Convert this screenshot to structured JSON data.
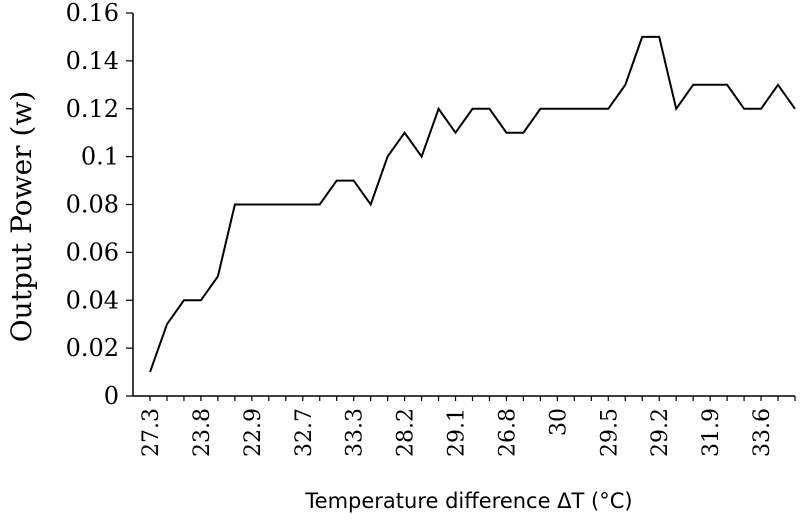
{
  "chart_data": {
    "type": "line",
    "title": "",
    "xlabel": "Temperature difference ΔT (°C)",
    "ylabel": "Output Power (w)",
    "ylim": [
      0,
      0.16
    ],
    "yticks": [
      "0",
      "0.02",
      "0.04",
      "0.06",
      "0.08",
      "0.1",
      "0.12",
      "0.14",
      "0.16"
    ],
    "grid": false,
    "legend": "none",
    "line_color": "#000000",
    "x": [
      "27.3",
      "",
      "",
      "23.8",
      "",
      "",
      "22.9",
      "",
      "",
      "32.7",
      "",
      "",
      "33.3",
      "",
      "",
      "28.2",
      "",
      "",
      "29.1",
      "",
      "",
      "26.8",
      "",
      "",
      "30",
      "",
      "",
      "29.5",
      "",
      "",
      "29.2",
      "",
      "",
      "31.9",
      "",
      "",
      "33.6",
      "",
      ""
    ],
    "x_tick_labels": [
      "27.3",
      "23.8",
      "22.9",
      "32.7",
      "33.3",
      "28.2",
      "29.1",
      "26.8",
      "30",
      "29.5",
      "29.2",
      "31.9",
      "33.6"
    ],
    "series": [
      {
        "values": [
          0.01,
          0.03,
          0.04,
          0.04,
          0.05,
          0.08,
          0.08,
          0.08,
          0.08,
          0.08,
          0.08,
          0.09,
          0.09,
          0.08,
          0.1,
          0.11,
          0.1,
          0.12,
          0.11,
          0.12,
          0.12,
          0.11,
          0.11,
          0.12,
          0.12,
          0.12,
          0.12,
          0.12,
          0.13,
          0.15,
          0.15,
          0.12,
          0.13,
          0.13,
          0.13,
          0.12,
          0.12,
          0.13,
          0.12
        ]
      }
    ]
  }
}
